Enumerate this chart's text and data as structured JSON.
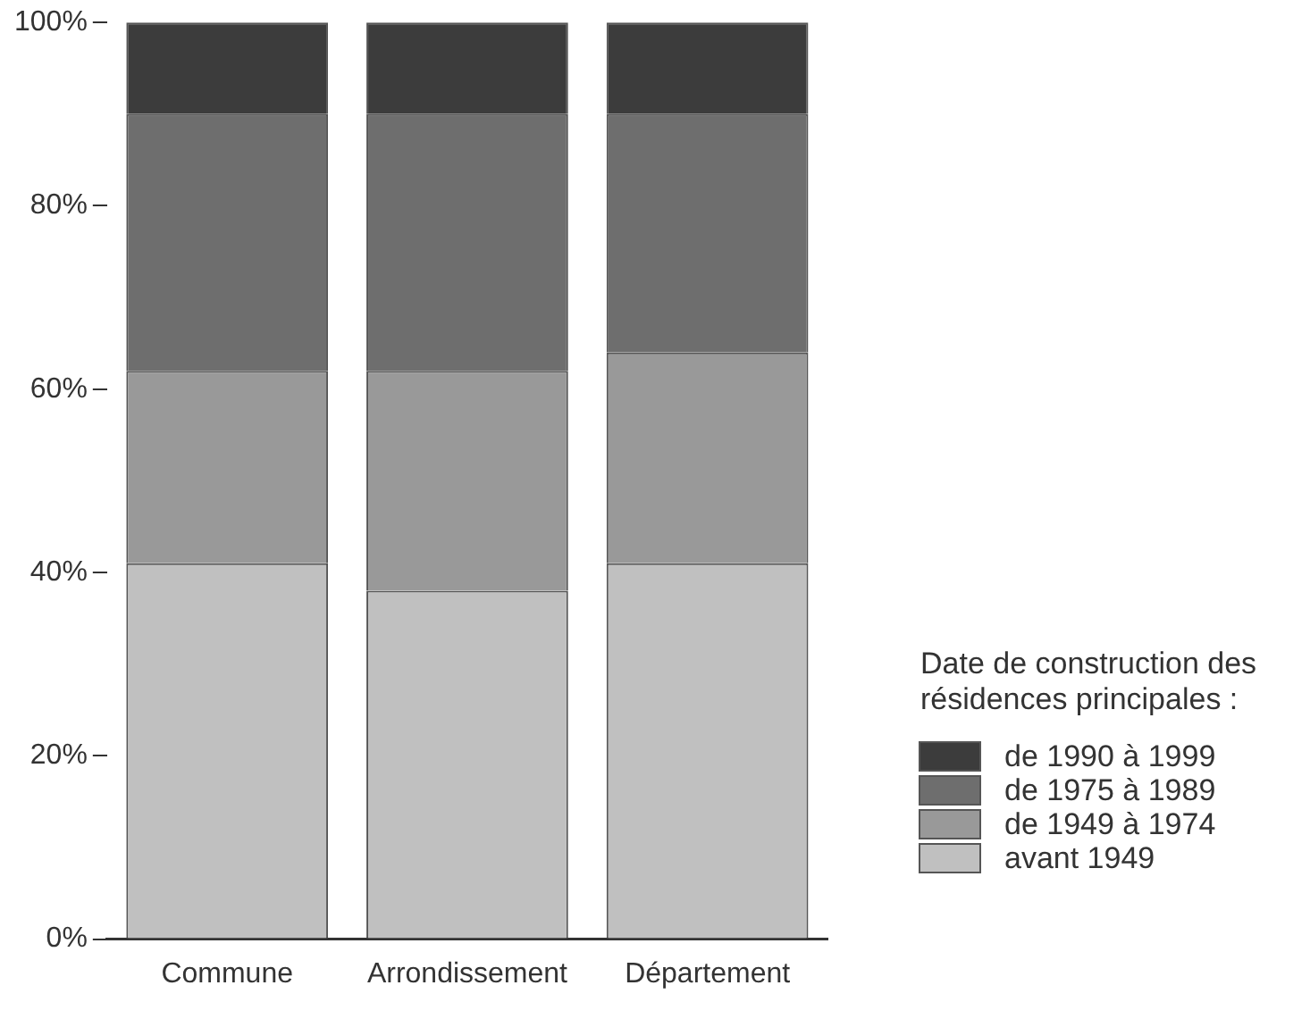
{
  "chart_data": {
    "type": "bar",
    "stacked": true,
    "categories": [
      "Commune",
      "Arrondissement",
      "Département"
    ],
    "series": [
      {
        "name": "avant 1949",
        "color": "#c0c0c0",
        "values": [
          41,
          38,
          41
        ]
      },
      {
        "name": "de 1949 à 1974",
        "color": "#999999",
        "values": [
          21,
          24,
          23
        ]
      },
      {
        "name": "de 1975 à 1989",
        "color": "#6e6e6e",
        "values": [
          28,
          28,
          26
        ]
      },
      {
        "name": "de 1990 à 1999",
        "color": "#3c3c3c",
        "values": [
          10,
          10,
          10
        ]
      }
    ],
    "ylim": [
      0,
      100
    ],
    "yticks": [
      {
        "value": 0,
        "label": "0%"
      },
      {
        "value": 20,
        "label": "20%"
      },
      {
        "value": 40,
        "label": "40%"
      },
      {
        "value": 60,
        "label": "60%"
      },
      {
        "value": 80,
        "label": "80%"
      },
      {
        "value": 100,
        "label": "100%"
      }
    ],
    "grid": false,
    "legend": "bottom right",
    "legend_title": "Date de construction des résidences principales :"
  }
}
